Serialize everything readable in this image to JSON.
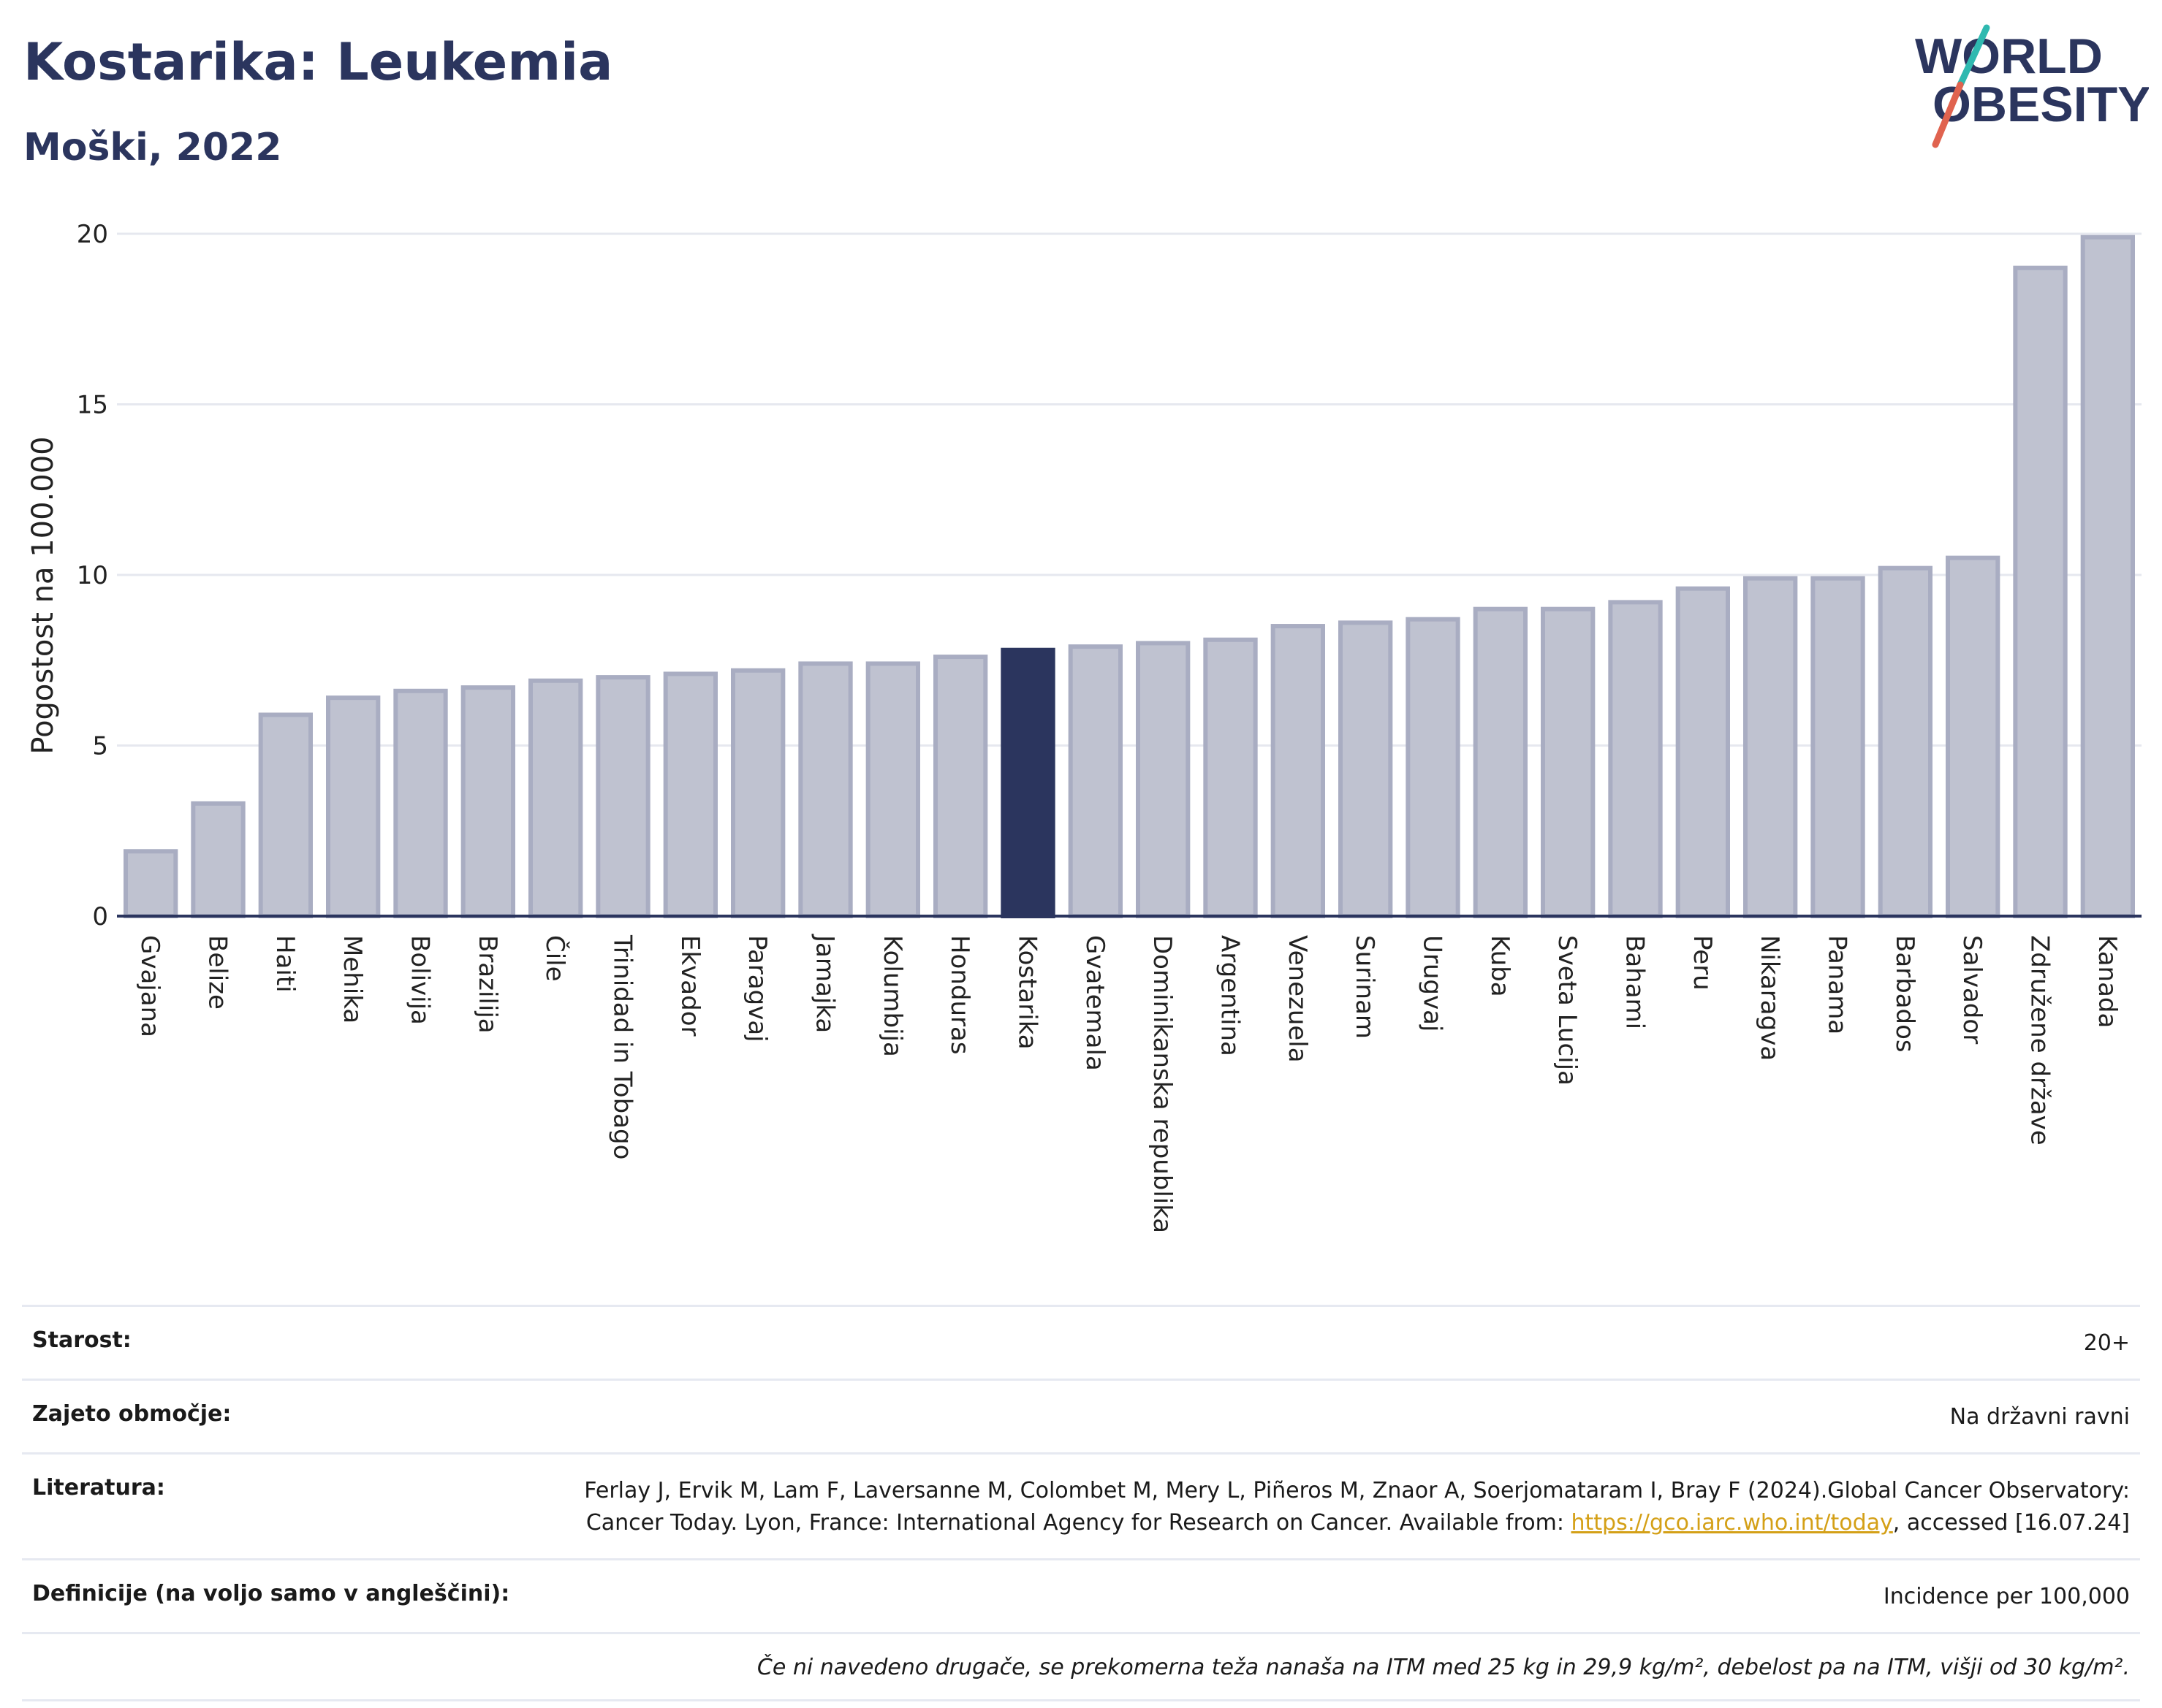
{
  "header": {
    "title": "Kostarika: Leukemia",
    "subtitle": "Moški, 2022"
  },
  "logo": {
    "line1": "WORLD",
    "line2": "OBESITY"
  },
  "colors": {
    "highlight": "#2b355e",
    "bar_fill": "#bfc2d0",
    "bar_stroke": "#a9adc2",
    "grid": "#e6e8ef",
    "logo_text": "#2b355e",
    "logo_slash_teal": "#2fb9b0",
    "logo_slash_red": "#e0634f"
  },
  "chart_data": {
    "type": "bar",
    "ylabel": "Pogostost na 100.000",
    "ylim": [
      0,
      20
    ],
    "yticks": [
      0,
      5,
      10,
      15,
      20
    ],
    "grid": true,
    "highlight_category": "Kostarika",
    "categories": [
      "Gvajana",
      "Belize",
      "Haiti",
      "Mehika",
      "Bolivija",
      "Brazilija",
      "Čile",
      "Trinidad in Tobago",
      "Ekvador",
      "Paragvaj",
      "Jamajka",
      "Kolumbija",
      "Honduras",
      "Kostarika",
      "Gvatemala",
      "Dominikanska republika",
      "Argentina",
      "Venezuela",
      "Surinam",
      "Urugvaj",
      "Kuba",
      "Sveta Lucija",
      "Bahami",
      "Peru",
      "Nikaragva",
      "Panama",
      "Barbados",
      "Salvador",
      "Združene države",
      "Kanada"
    ],
    "values": [
      1.9,
      3.3,
      5.9,
      6.4,
      6.6,
      6.7,
      6.9,
      7.0,
      7.1,
      7.2,
      7.4,
      7.4,
      7.6,
      7.8,
      7.9,
      8.0,
      8.1,
      8.5,
      8.6,
      8.7,
      9.0,
      9.0,
      9.2,
      9.6,
      9.9,
      9.9,
      10.2,
      10.5,
      19.0,
      19.9
    ]
  },
  "meta": {
    "age_label": "Starost:",
    "age_value": "20+",
    "coverage_label": "Zajeto območje:",
    "coverage_value": "Na državni ravni",
    "literature_label": "Literatura:",
    "literature_text": "Ferlay J, Ervik M, Lam F, Laversanne M, Colombet M, Mery L, Piñeros M, Znaor A, Soerjomataram I, Bray F (2024).Global Cancer Observatory: Cancer Today. Lyon, France: International Agency for Research on Cancer. Available from: ",
    "literature_link": "https://gco.iarc.who.int/today",
    "literature_suffix": ", accessed [16.07.24]",
    "definitions_label": "Definicije (na voljo samo v angleščini):",
    "definitions_value": "Incidence per 100,000",
    "note": "Če ni navedeno drugače, se prekomerna teža nanaša na ITM med 25 kg in 29,9 kg/m², debelost pa na ITM, višji od 30 kg/m²."
  }
}
